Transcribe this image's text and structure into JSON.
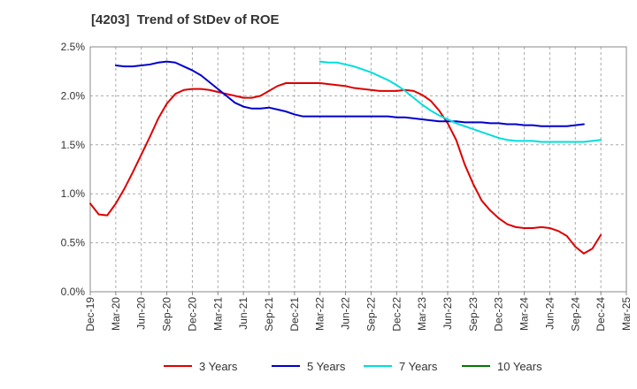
{
  "chart_data": {
    "type": "line",
    "title": "[4203]  Trend of StDev of ROE",
    "xlabel": "",
    "ylabel": "",
    "ylim": [
      0,
      2.5
    ],
    "y_ticks": [
      "0.0%",
      "0.5%",
      "1.0%",
      "1.5%",
      "2.0%",
      "2.5%"
    ],
    "y_tick_values": [
      0,
      0.5,
      1.0,
      1.5,
      2.0,
      2.5
    ],
    "x_ticks": [
      "Dec-19",
      "Mar-20",
      "Jun-20",
      "Sep-20",
      "Dec-20",
      "Mar-21",
      "Jun-21",
      "Sep-21",
      "Dec-21",
      "Mar-22",
      "Jun-22",
      "Sep-22",
      "Dec-22",
      "Mar-23",
      "Jun-23",
      "Sep-23",
      "Dec-23",
      "Mar-24",
      "Jun-24",
      "Sep-24",
      "Dec-24",
      "Mar-25"
    ],
    "grid": "horizontal dashed",
    "legend_position": "bottom",
    "series": [
      {
        "name": "3 Years",
        "color": "#dd0000",
        "start_index": 0,
        "values": [
          0.9,
          0.79,
          0.78,
          0.9,
          1.05,
          1.22,
          1.4,
          1.58,
          1.77,
          1.92,
          2.02,
          2.06,
          2.07,
          2.07,
          2.06,
          2.04,
          2.02,
          2.0,
          1.98,
          1.98,
          2.0,
          2.05,
          2.1,
          2.13,
          2.13,
          2.13,
          2.13,
          2.13,
          2.12,
          2.11,
          2.1,
          2.08,
          2.07,
          2.06,
          2.05,
          2.05,
          2.05,
          2.06,
          2.05,
          2.01,
          1.95,
          1.85,
          1.72,
          1.55,
          1.3,
          1.1,
          0.93,
          0.83,
          0.75,
          0.69,
          0.66,
          0.65,
          0.65,
          0.66,
          0.65,
          0.62,
          0.57,
          0.46,
          0.39,
          0.44,
          0.58
        ]
      },
      {
        "name": "5 Years",
        "color": "#0000cc",
        "start_index": 3,
        "values": [
          2.31,
          2.3,
          2.3,
          2.31,
          2.32,
          2.34,
          2.35,
          2.34,
          2.3,
          2.26,
          2.21,
          2.14,
          2.07,
          2.0,
          1.93,
          1.89,
          1.87,
          1.87,
          1.88,
          1.86,
          1.84,
          1.81,
          1.79,
          1.79,
          1.79,
          1.79,
          1.79,
          1.79,
          1.79,
          1.79,
          1.79,
          1.79,
          1.79,
          1.78,
          1.78,
          1.77,
          1.76,
          1.75,
          1.74,
          1.74,
          1.74,
          1.73,
          1.73,
          1.73,
          1.72,
          1.72,
          1.71,
          1.71,
          1.7,
          1.7,
          1.69,
          1.69,
          1.69,
          1.69,
          1.7,
          1.71
        ]
      },
      {
        "name": "7 Years",
        "color": "#00dddd",
        "start_index": 27,
        "values": [
          2.35,
          2.34,
          2.34,
          2.32,
          2.3,
          2.27,
          2.24,
          2.2,
          2.16,
          2.11,
          2.05,
          1.98,
          1.91,
          1.85,
          1.8,
          1.76,
          1.72,
          1.69,
          1.66,
          1.63,
          1.6,
          1.57,
          1.55,
          1.54,
          1.54,
          1.54,
          1.53,
          1.53,
          1.53,
          1.53,
          1.53,
          1.53,
          1.54,
          1.55
        ]
      },
      {
        "name": "10 Years",
        "color": "#007700",
        "start_index": 0,
        "values": []
      }
    ]
  }
}
